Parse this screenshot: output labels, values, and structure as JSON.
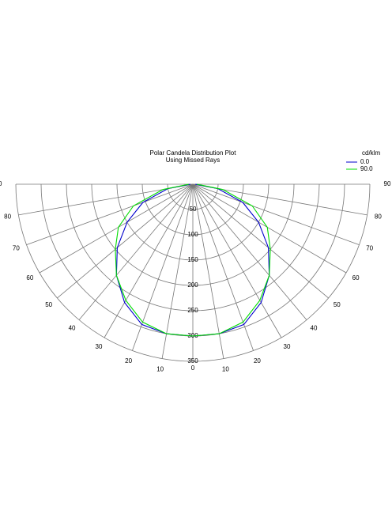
{
  "chart_data": {
    "type": "polar",
    "title": "Polar Candela Distribution Plot",
    "subtitle": "Using Missed Rays",
    "legend_title": "cd/klm",
    "angles": [
      0,
      10,
      20,
      30,
      40,
      50,
      60,
      70,
      80,
      90
    ],
    "series": [
      {
        "name": "0.0",
        "color": "#0000cc",
        "values": [
          300,
          300,
          295,
          270,
          235,
          195,
          150,
          105,
          50,
          5
        ]
      },
      {
        "name": "90.0",
        "color": "#00dd00",
        "values": [
          300,
          300,
          290,
          265,
          235,
          200,
          170,
          125,
          60,
          8
        ]
      }
    ],
    "rlim": [
      0,
      350
    ],
    "rticks": [
      50,
      100,
      150,
      200,
      250,
      300,
      350
    ],
    "angle_ticks": [
      0,
      10,
      20,
      30,
      40,
      50,
      60,
      70,
      80,
      90
    ],
    "grid": true
  }
}
